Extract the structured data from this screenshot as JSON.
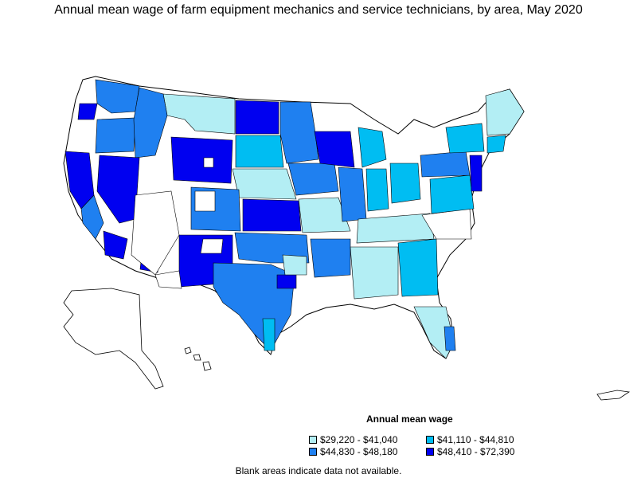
{
  "title": "Annual mean wage of farm equipment mechanics and service technicians, by area, May 2020",
  "legend": {
    "title": "Annual mean wage",
    "items": [
      {
        "label": "$29,220 - $41,040",
        "color": "#b3eef4"
      },
      {
        "label": "$41,110 - $44,810",
        "color": "#00bdf2"
      },
      {
        "label": "$44,830 - $48,180",
        "color": "#1f80f0"
      },
      {
        "label": "$48,410 - $72,390",
        "color": "#0000f0"
      }
    ]
  },
  "footnote": "Blank areas indicate data not available.",
  "colors": {
    "blank": "#ffffff",
    "border": "#000000"
  }
}
